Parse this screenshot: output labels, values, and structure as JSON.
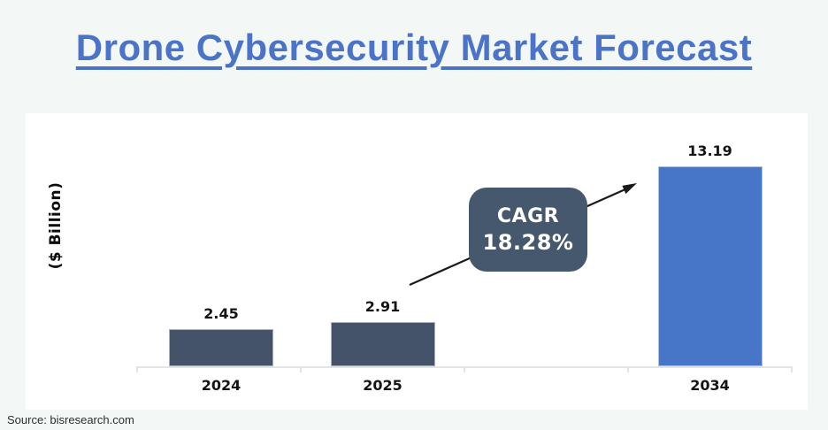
{
  "title": "Drone Cybersecurity Market Forecast",
  "source": "Source: bisresearch.com",
  "colors": {
    "background": "#F3F7F5",
    "card": "#FFFFFF",
    "title_blue": "#4B74C8",
    "bar_dark": "#44526A",
    "bar_blue": "#4776C9",
    "cagr_box": "#46586E",
    "axis_gray": "#E3E4E6",
    "label_text": "#141414"
  },
  "chart_data": {
    "type": "bar",
    "title": "Drone Cybersecurity Market Forecast",
    "xlabel": "",
    "ylabel": "($ Billion)",
    "categories": [
      "2024",
      "2025",
      "2034"
    ],
    "values": [
      2.45,
      2.91,
      13.19
    ],
    "value_labels": [
      "2.45",
      "2.91",
      "13.19"
    ],
    "bar_colors": [
      "#44526A",
      "#44526A",
      "#4776C9"
    ],
    "ylim": [
      0,
      14
    ],
    "grid": false,
    "legend": "none",
    "annotation": {
      "label": "CAGR",
      "value": "18.28%"
    }
  }
}
